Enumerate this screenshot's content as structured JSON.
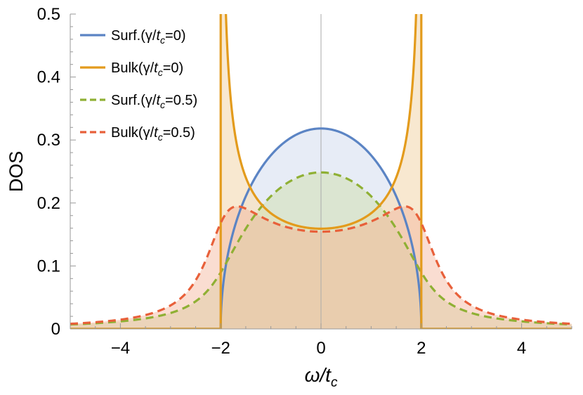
{
  "chart_data": {
    "type": "line",
    "title": "",
    "xlabel": {
      "main": "ω/t",
      "sub": "c"
    },
    "ylabel": "DOS",
    "xlim": [
      -5,
      5
    ],
    "ylim": [
      0,
      0.5
    ],
    "x_ticks": [
      -4,
      -2,
      0,
      2,
      4
    ],
    "x_tick_labels": [
      "−4",
      "−2",
      "0",
      "2",
      "4"
    ],
    "y_ticks": [
      0,
      0.1,
      0.2,
      0.3,
      0.4,
      0.5
    ],
    "y_tick_labels": [
      "0",
      "0.1",
      "0.2",
      "0.3",
      "0.4",
      "0.5"
    ],
    "band_edge": 2,
    "broadening_gamma": 0.5,
    "surface_peak": 0.318,
    "bulk_min": 0.159,
    "legend_position": "top-left",
    "series": [
      {
        "name": "Surf.(γ/tc=0)",
        "label_pre": "Surf.(γ/",
        "label_t": "t",
        "label_sub": "c",
        "label_post": "=0)",
        "key": "surf0",
        "color": "#5b84c4",
        "dashed": false,
        "fill": "#dfe6f3",
        "fill_opacity": 0.75
      },
      {
        "name": "Bulk(γ/tc=0)",
        "label_pre": "Bulk(γ/",
        "label_t": "t",
        "label_sub": "c",
        "label_post": "=0)",
        "key": "bulk0",
        "color": "#e39b1c",
        "dashed": false,
        "fill": "#f6e2c4",
        "fill_opacity": 0.8
      },
      {
        "name": "Surf.(γ/tc=0.5)",
        "label_pre": "Surf.(γ/",
        "label_t": "t",
        "label_sub": "c",
        "label_post": "=0.5)",
        "key": "surf05",
        "color": "#8fb034",
        "dashed": true,
        "fill": "#d2e0b3",
        "fill_opacity": 0.55
      },
      {
        "name": "Bulk(γ/tc=0.5)",
        "label_pre": "Bulk(γ/",
        "label_t": "t",
        "label_sub": "c",
        "label_post": "=0.5)",
        "key": "bulk05",
        "color": "#e8603a",
        "dashed": true,
        "fill": "#f3b49a",
        "fill_opacity": 0.45
      }
    ]
  }
}
